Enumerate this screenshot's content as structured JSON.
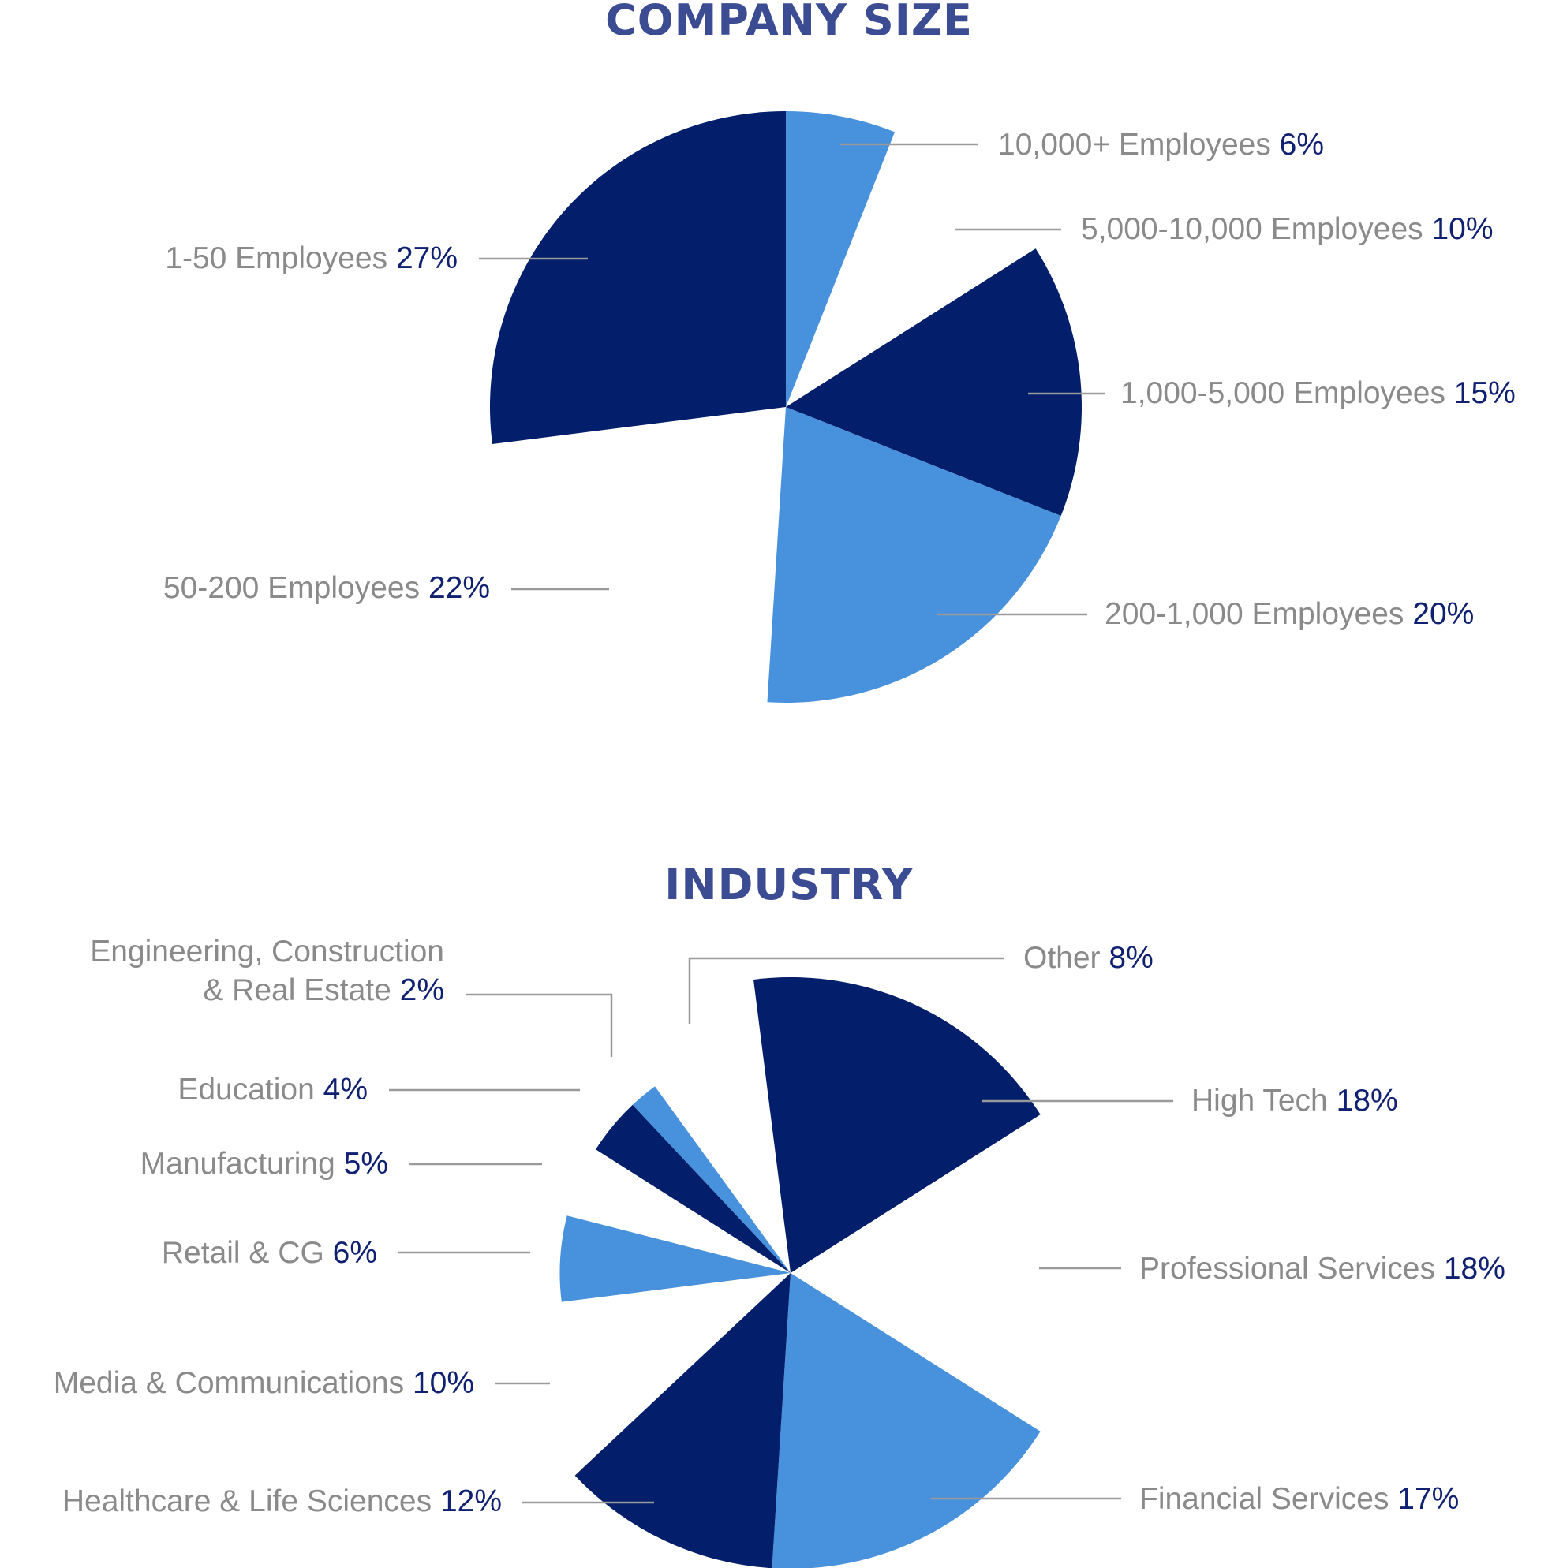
{
  "colors": {
    "dark": "#031e6a",
    "light": "#4891dc",
    "title": "#3b4c93",
    "label": "#8a8a8a",
    "percent": "#0f2170",
    "leader": "#9a9a9a"
  },
  "chart_data": [
    {
      "type": "pie",
      "title": "COMPANY SIZE",
      "slices": [
        {
          "label": "10,000+ Employees",
          "value": 6,
          "value_label": "6%",
          "color": "light",
          "radius_scale": 1.0
        },
        {
          "label": "5,000-10,000 Employees",
          "value": 10,
          "value_label": "10%",
          "color": "none",
          "radius_scale": 1.0
        },
        {
          "label": "1,000-5,000 Employees",
          "value": 15,
          "value_label": "15%",
          "color": "dark",
          "radius_scale": 1.0
        },
        {
          "label": "200-1,000 Employees",
          "value": 20,
          "value_label": "20%",
          "color": "light",
          "radius_scale": 1.0
        },
        {
          "label": "50-200 Employees",
          "value": 22,
          "value_label": "22%",
          "color": "none",
          "radius_scale": 1.0
        },
        {
          "label": "1-50 Employees",
          "value": 27,
          "value_label": "27%",
          "color": "dark",
          "radius_scale": 1.0
        }
      ]
    },
    {
      "type": "pie",
      "title": "INDUSTRY",
      "slices": [
        {
          "label": "High Tech",
          "value": 18,
          "value_label": "18%",
          "color": "dark",
          "radius_scale": 1.0
        },
        {
          "label": "Professional Services",
          "value": 18,
          "value_label": "18%",
          "color": "none",
          "radius_scale": 1.0
        },
        {
          "label": "Financial Services",
          "value": 17,
          "value_label": "17%",
          "color": "light",
          "radius_scale": 1.0
        },
        {
          "label": "Healthcare & Life Sciences",
          "value": 12,
          "value_label": "12%",
          "color": "dark",
          "radius_scale": 1.0
        },
        {
          "label": "Media & Communications",
          "value": 10,
          "value_label": "10%",
          "color": "none",
          "radius_scale": 1.0
        },
        {
          "label": "Retail & CG",
          "value": 6,
          "value_label": "6%",
          "color": "light",
          "radius_scale": 0.78
        },
        {
          "label": "Manufacturing",
          "value": 5,
          "value_label": "5%",
          "color": "none",
          "radius_scale": 0.78
        },
        {
          "label": "Education",
          "value": 4,
          "value_label": "4%",
          "color": "dark",
          "radius_scale": 0.78
        },
        {
          "label": "Engineering, Construction & Real Estate",
          "label_lines": [
            "Engineering, Construction",
            "& Real Estate"
          ],
          "value": 2,
          "value_label": "2%",
          "color": "light",
          "radius_scale": 0.78
        },
        {
          "label": "Other",
          "value": 8,
          "value_label": "8%",
          "color": "none",
          "radius_scale": 1.0
        }
      ]
    }
  ]
}
